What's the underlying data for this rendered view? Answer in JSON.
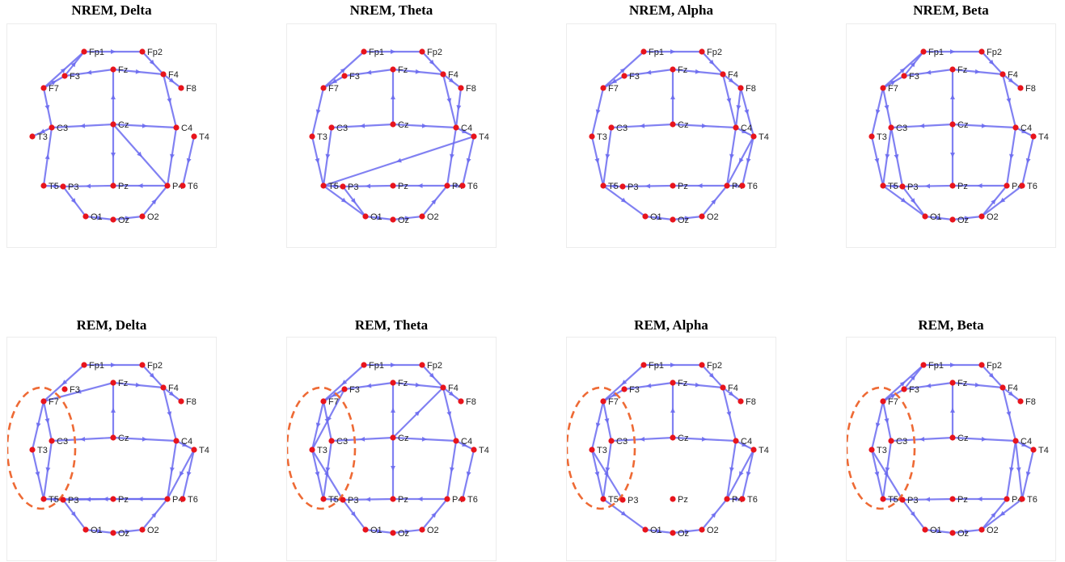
{
  "colors": {
    "edge": "#6b6bf0",
    "node": "#e8141c",
    "highlight": "#ee6a35"
  },
  "electrodes": [
    "Fp1",
    "Fp2",
    "F7",
    "F3",
    "Fz",
    "F4",
    "F8",
    "T3",
    "C3",
    "Cz",
    "C4",
    "T4",
    "T5",
    "P3",
    "Pz",
    "P4",
    "T6",
    "O1",
    "Oz",
    "O2"
  ],
  "panels": [
    {
      "title": "NREM, Delta",
      "highlight": false,
      "edges": [
        [
          "Fp1",
          "Fp2"
        ],
        [
          "Fp2",
          "F4"
        ],
        [
          "F4",
          "F8"
        ],
        [
          "Fz",
          "F4"
        ],
        [
          "Fz",
          "F3"
        ],
        [
          "F3",
          "Fp1"
        ],
        [
          "F7",
          "Fp1"
        ],
        [
          "F7",
          "F3"
        ],
        [
          "F7",
          "C3"
        ],
        [
          "C3",
          "T3"
        ],
        [
          "Cz",
          "C3"
        ],
        [
          "Cz",
          "C4"
        ],
        [
          "Cz",
          "Fz"
        ],
        [
          "Cz",
          "Pz"
        ],
        [
          "Cz",
          "P4"
        ],
        [
          "F4",
          "C4"
        ],
        [
          "C4",
          "P4"
        ],
        [
          "P4",
          "Pz"
        ],
        [
          "Pz",
          "P3"
        ],
        [
          "P3",
          "T5"
        ],
        [
          "T5",
          "C3"
        ],
        [
          "P3",
          "O1"
        ],
        [
          "O1",
          "Oz"
        ],
        [
          "Oz",
          "O2"
        ],
        [
          "O2",
          "P4"
        ],
        [
          "T4",
          "T6"
        ]
      ]
    },
    {
      "title": "NREM, Theta",
      "highlight": false,
      "edges": [
        [
          "Fp1",
          "Fp2"
        ],
        [
          "Fp2",
          "F4"
        ],
        [
          "F4",
          "F8"
        ],
        [
          "F8",
          "C4"
        ],
        [
          "Fz",
          "F4"
        ],
        [
          "Fz",
          "F3"
        ],
        [
          "F3",
          "F7"
        ],
        [
          "F7",
          "Fp1"
        ],
        [
          "F7",
          "T3"
        ],
        [
          "T3",
          "T5"
        ],
        [
          "C3",
          "T5"
        ],
        [
          "Cz",
          "C3"
        ],
        [
          "Cz",
          "C4"
        ],
        [
          "Cz",
          "Fz"
        ],
        [
          "F4",
          "C4"
        ],
        [
          "C4",
          "T4"
        ],
        [
          "T4",
          "T5"
        ],
        [
          "T4",
          "T6"
        ],
        [
          "C4",
          "P4"
        ],
        [
          "P4",
          "Pz"
        ],
        [
          "Pz",
          "P3"
        ],
        [
          "P3",
          "T5"
        ],
        [
          "T5",
          "O1"
        ],
        [
          "P3",
          "O1"
        ],
        [
          "O1",
          "Oz"
        ],
        [
          "Oz",
          "O2"
        ],
        [
          "O2",
          "P4"
        ],
        [
          "T6",
          "P4"
        ]
      ]
    },
    {
      "title": "NREM, Alpha",
      "highlight": false,
      "edges": [
        [
          "Fp1",
          "Fp2"
        ],
        [
          "Fp2",
          "F4"
        ],
        [
          "F4",
          "F8"
        ],
        [
          "F8",
          "C4"
        ],
        [
          "F8",
          "T4"
        ],
        [
          "Fz",
          "F4"
        ],
        [
          "Fz",
          "F3"
        ],
        [
          "F3",
          "F7"
        ],
        [
          "F7",
          "Fp1"
        ],
        [
          "F7",
          "T3"
        ],
        [
          "T3",
          "T5"
        ],
        [
          "C3",
          "T5"
        ],
        [
          "Cz",
          "C3"
        ],
        [
          "Cz",
          "C4"
        ],
        [
          "Cz",
          "Fz"
        ],
        [
          "F4",
          "C4"
        ],
        [
          "C4",
          "T4"
        ],
        [
          "C4",
          "P4"
        ],
        [
          "T4",
          "T6"
        ],
        [
          "T4",
          "P4"
        ],
        [
          "P4",
          "Pz"
        ],
        [
          "Pz",
          "P3"
        ],
        [
          "P3",
          "T5"
        ],
        [
          "T5",
          "O1"
        ],
        [
          "O1",
          "Oz"
        ],
        [
          "Oz",
          "O2"
        ],
        [
          "O2",
          "P4"
        ],
        [
          "T6",
          "P4"
        ]
      ]
    },
    {
      "title": "NREM, Beta",
      "highlight": false,
      "edges": [
        [
          "Fp1",
          "Fp2"
        ],
        [
          "Fp2",
          "F4"
        ],
        [
          "F4",
          "F8"
        ],
        [
          "F4",
          "C4"
        ],
        [
          "Fz",
          "F4"
        ],
        [
          "Fz",
          "F3"
        ],
        [
          "F3",
          "Fp1"
        ],
        [
          "F7",
          "Fp1"
        ],
        [
          "F7",
          "F3"
        ],
        [
          "F7",
          "T3"
        ],
        [
          "F7",
          "C3"
        ],
        [
          "T3",
          "T5"
        ],
        [
          "C3",
          "T5"
        ],
        [
          "C3",
          "P3"
        ],
        [
          "Cz",
          "C3"
        ],
        [
          "Cz",
          "C4"
        ],
        [
          "Cz",
          "Fz"
        ],
        [
          "Cz",
          "Pz"
        ],
        [
          "C4",
          "T4"
        ],
        [
          "C4",
          "P4"
        ],
        [
          "T4",
          "T6"
        ],
        [
          "T6",
          "O2"
        ],
        [
          "P4",
          "Pz"
        ],
        [
          "Pz",
          "P3"
        ],
        [
          "P3",
          "T5"
        ],
        [
          "T5",
          "O1"
        ],
        [
          "P3",
          "O1"
        ],
        [
          "O1",
          "Oz"
        ],
        [
          "Oz",
          "O2"
        ],
        [
          "O2",
          "P4"
        ]
      ]
    },
    {
      "title": "REM, Delta",
      "highlight": true,
      "edges": [
        [
          "Fp1",
          "Fp2"
        ],
        [
          "Fp2",
          "F4"
        ],
        [
          "F4",
          "F8"
        ],
        [
          "F4",
          "C4"
        ],
        [
          "Fz",
          "F4"
        ],
        [
          "Fz",
          "F7"
        ],
        [
          "Fp1",
          "F7"
        ],
        [
          "F7",
          "T3"
        ],
        [
          "T3",
          "T5"
        ],
        [
          "F7",
          "C3"
        ],
        [
          "C3",
          "T5"
        ],
        [
          "Cz",
          "C3"
        ],
        [
          "Cz",
          "C4"
        ],
        [
          "Cz",
          "Fz"
        ],
        [
          "C4",
          "T4"
        ],
        [
          "C4",
          "P4"
        ],
        [
          "T4",
          "T6"
        ],
        [
          "T4",
          "P4"
        ],
        [
          "P4",
          "Pz"
        ],
        [
          "P4",
          "T5"
        ],
        [
          "Pz",
          "P3"
        ],
        [
          "P3",
          "T5"
        ],
        [
          "P3",
          "O1"
        ],
        [
          "O1",
          "Oz"
        ],
        [
          "Oz",
          "O2"
        ],
        [
          "O2",
          "P4"
        ]
      ]
    },
    {
      "title": "REM, Theta",
      "highlight": true,
      "edges": [
        [
          "Fp1",
          "Fp2"
        ],
        [
          "Fp2",
          "F4"
        ],
        [
          "F4",
          "F8"
        ],
        [
          "F4",
          "C4"
        ],
        [
          "Fz",
          "F4"
        ],
        [
          "Fz",
          "F3"
        ],
        [
          "F3",
          "F7"
        ],
        [
          "Fp1",
          "F7"
        ],
        [
          "F7",
          "T3"
        ],
        [
          "F7",
          "C3"
        ],
        [
          "F3",
          "T3"
        ],
        [
          "T3",
          "T5"
        ],
        [
          "C3",
          "T5"
        ],
        [
          "T3",
          "P3"
        ],
        [
          "Cz",
          "C3"
        ],
        [
          "Cz",
          "C4"
        ],
        [
          "Cz",
          "Fz"
        ],
        [
          "Cz",
          "Pz"
        ],
        [
          "Cz",
          "F4"
        ],
        [
          "C4",
          "T4"
        ],
        [
          "C4",
          "P4"
        ],
        [
          "T4",
          "T6"
        ],
        [
          "P4",
          "Pz"
        ],
        [
          "Pz",
          "P3"
        ],
        [
          "P3",
          "T5"
        ],
        [
          "P3",
          "O1"
        ],
        [
          "O1",
          "Oz"
        ],
        [
          "Oz",
          "O2"
        ],
        [
          "O2",
          "P4"
        ]
      ]
    },
    {
      "title": "REM, Alpha",
      "highlight": true,
      "edges": [
        [
          "Fp1",
          "Fp2"
        ],
        [
          "Fp2",
          "F4"
        ],
        [
          "F4",
          "F8"
        ],
        [
          "F4",
          "C4"
        ],
        [
          "Fz",
          "F4"
        ],
        [
          "Fz",
          "F3"
        ],
        [
          "F3",
          "F7"
        ],
        [
          "Fp1",
          "F7"
        ],
        [
          "F7",
          "T3"
        ],
        [
          "F7",
          "C3"
        ],
        [
          "T3",
          "T5"
        ],
        [
          "C3",
          "T5"
        ],
        [
          "T3",
          "P3"
        ],
        [
          "Cz",
          "C3"
        ],
        [
          "Cz",
          "C4"
        ],
        [
          "Cz",
          "Fz"
        ],
        [
          "C4",
          "T4"
        ],
        [
          "C4",
          "P4"
        ],
        [
          "T4",
          "T6"
        ],
        [
          "T4",
          "P4"
        ],
        [
          "T5",
          "O1"
        ],
        [
          "O1",
          "Oz"
        ],
        [
          "Oz",
          "O2"
        ],
        [
          "O2",
          "P4"
        ],
        [
          "T6",
          "P4"
        ]
      ]
    },
    {
      "title": "REM, Beta",
      "highlight": true,
      "edges": [
        [
          "Fp1",
          "Fp2"
        ],
        [
          "Fp2",
          "F4"
        ],
        [
          "F4",
          "F8"
        ],
        [
          "F4",
          "C4"
        ],
        [
          "Fz",
          "F4"
        ],
        [
          "Fz",
          "F3"
        ],
        [
          "F3",
          "Fp1"
        ],
        [
          "F7",
          "Fp1"
        ],
        [
          "F7",
          "F3"
        ],
        [
          "F7",
          "T3"
        ],
        [
          "F7",
          "C3"
        ],
        [
          "T3",
          "T5"
        ],
        [
          "C3",
          "T5"
        ],
        [
          "T3",
          "P3"
        ],
        [
          "Cz",
          "C3"
        ],
        [
          "Cz",
          "C4"
        ],
        [
          "Cz",
          "Fz"
        ],
        [
          "C4",
          "T4"
        ],
        [
          "C4",
          "P4"
        ],
        [
          "C4",
          "T6"
        ],
        [
          "T4",
          "T6"
        ],
        [
          "T6",
          "O2"
        ],
        [
          "P4",
          "Pz"
        ],
        [
          "Pz",
          "P3"
        ],
        [
          "P3",
          "T5"
        ],
        [
          "P3",
          "O1"
        ],
        [
          "O1",
          "Oz"
        ],
        [
          "Oz",
          "O2"
        ],
        [
          "O2",
          "P4"
        ]
      ]
    }
  ]
}
